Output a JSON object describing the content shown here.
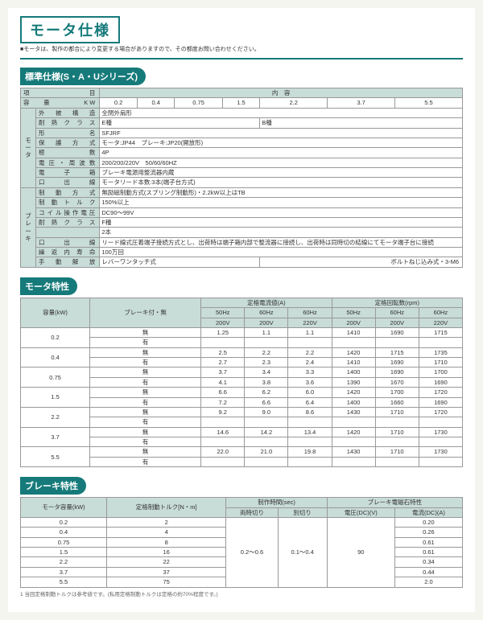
{
  "page": {
    "title": "モータ仕様",
    "subtitle": "■モータは、製作の都合により変更する場合がありますので、その都度お問い合わせください。"
  },
  "section1": {
    "tab": "標準仕様(S・A・Uシリーズ)",
    "headers": {
      "item": "項　目",
      "content": "内　容"
    },
    "kw_row": {
      "label": "容量　KW",
      "vals": [
        "0.2",
        "0.4",
        "0.75",
        "1.5",
        "2.2",
        "3.7",
        "5.5"
      ]
    },
    "motor_group": "モータ",
    "brake_group": "ブレーキ",
    "motor_rows": [
      {
        "l": "外被構造",
        "v": "全閉外扇形"
      },
      {
        "l": "耐熱クラス",
        "v1": "E種",
        "v2": "B種"
      },
      {
        "l": "形名",
        "v": "SFJRF"
      },
      {
        "l": "保護方式",
        "v": "モータ:JP44　ブレーキ:JP20(開放形)"
      },
      {
        "l": "極数",
        "v": "4P"
      },
      {
        "l": "電圧・周波数",
        "v": "200/200/220V　50/60/60HZ"
      },
      {
        "l": "電子箱",
        "v": "ブレーキ電源用整流器内蔵"
      },
      {
        "l": "口出線",
        "v": "モータリード本数:3本(端子台方式)"
      }
    ],
    "brake_rows": [
      {
        "l": "制動方式",
        "v": "無励磁制動方式(スプリング制動形)・2.2kW以上はTB"
      },
      {
        "l": "制動トルク",
        "v": "150%以上"
      },
      {
        "l": "コイル操作電圧",
        "v": "DC90～99V"
      },
      {
        "l": "耐熱クラス",
        "v": "F種"
      },
      {
        "l": "",
        "v": "2本"
      },
      {
        "l": "口出線",
        "v": "リード線式圧着端子接続方式とし、出荷時は端子箱内部で整流器に接続し、出荷時は同時切の結線にてモータ端子台に接続"
      },
      {
        "l": "繰返内寿命",
        "v": "100万回"
      },
      {
        "l": "手動解放",
        "v1": "レバーワンタッチ式",
        "v2": "ボルトねじ込み式・3-M6"
      }
    ]
  },
  "section2": {
    "tab": "モータ特性",
    "h": {
      "cap": "容量(kW)",
      "brk": "ブレーキ付・無",
      "cur": "定格電流値(A)",
      "rpm": "定格回転数(rpm)",
      "hz50": "50Hz",
      "hz60": "60Hz",
      "v200": "200V",
      "v220": "220V",
      "ari": "有",
      "nashi": "無"
    },
    "rows": [
      {
        "cap": "0.2",
        "a": "無",
        "c": [
          "1.25",
          "1.1",
          "1.1"
        ],
        "r": [
          "1410",
          "1690",
          "1715"
        ]
      },
      {
        "cap": "",
        "a": "有",
        "c": [
          "",
          "",
          ""
        ],
        "r": [
          "",
          "",
          ""
        ]
      },
      {
        "cap": "0.4",
        "a": "無",
        "c": [
          "2.5",
          "2.2",
          "2.2"
        ],
        "r": [
          "1420",
          "1715",
          "1735"
        ]
      },
      {
        "cap": "",
        "a": "有",
        "c": [
          "2.7",
          "2.3",
          "2.4"
        ],
        "r": [
          "1410",
          "1690",
          "1710"
        ]
      },
      {
        "cap": "0.75",
        "a": "無",
        "c": [
          "3.7",
          "3.4",
          "3.3"
        ],
        "r": [
          "1400",
          "1690",
          "1700"
        ]
      },
      {
        "cap": "",
        "a": "有",
        "c": [
          "4.1",
          "3.8",
          "3.6"
        ],
        "r": [
          "1390",
          "1670",
          "1690"
        ]
      },
      {
        "cap": "1.5",
        "a": "無",
        "c": [
          "6.6",
          "6.2",
          "6.0"
        ],
        "r": [
          "1420",
          "1700",
          "1720"
        ]
      },
      {
        "cap": "",
        "a": "有",
        "c": [
          "7.2",
          "6.6",
          "6.4"
        ],
        "r": [
          "1400",
          "1660",
          "1690"
        ]
      },
      {
        "cap": "2.2",
        "a": "無",
        "c": [
          "9.2",
          "9.0",
          "8.6"
        ],
        "r": [
          "1430",
          "1710",
          "1720"
        ]
      },
      {
        "cap": "",
        "a": "有",
        "c": [
          "",
          "",
          ""
        ],
        "r": [
          "",
          "",
          ""
        ]
      },
      {
        "cap": "3.7",
        "a": "無",
        "c": [
          "14.6",
          "14.2",
          "13.4"
        ],
        "r": [
          "1420",
          "1710",
          "1730"
        ]
      },
      {
        "cap": "",
        "a": "有",
        "c": [
          "",
          "",
          ""
        ],
        "r": [
          "",
          "",
          ""
        ]
      },
      {
        "cap": "5.5",
        "a": "無",
        "c": [
          "22.0",
          "21.0",
          "19.8"
        ],
        "r": [
          "1430",
          "1710",
          "1730"
        ]
      },
      {
        "cap": "",
        "a": "有",
        "c": [
          "",
          "",
          ""
        ],
        "r": [
          "",
          "",
          ""
        ]
      }
    ]
  },
  "section3": {
    "tab": "ブレーキ特性",
    "h": {
      "cap": "モータ容量(kW)",
      "trq": "定格制動トルク[N・m]",
      "time": "制作時間(sec)",
      "t1": "両時切り",
      "t2": "別切り",
      "mag": "ブレーキ電磁石特性",
      "volt": "電圧(DC)(V)",
      "amp": "電流(DC)(A)"
    },
    "rows": [
      {
        "cap": "0.2",
        "trq": "2",
        "amp": "0.20"
      },
      {
        "cap": "0.4",
        "trq": "4",
        "amp": "0.26"
      },
      {
        "cap": "0.75",
        "trq": "8",
        "amp": "0.61"
      },
      {
        "cap": "1.5",
        "trq": "16",
        "amp": "0.61"
      },
      {
        "cap": "2.2",
        "trq": "22",
        "amp": "0.34"
      },
      {
        "cap": "3.7",
        "trq": "37",
        "amp": "0.44"
      },
      {
        "cap": "5.5",
        "trq": "75",
        "amp": "2.0"
      }
    ],
    "time1": "0.2～0.6",
    "time2": "0.1～0.4",
    "volt": "90",
    "footnote": "1 当回定格制動トルクは参考値です。(私用定格制動トルクは定格の約70%程度です。)"
  }
}
